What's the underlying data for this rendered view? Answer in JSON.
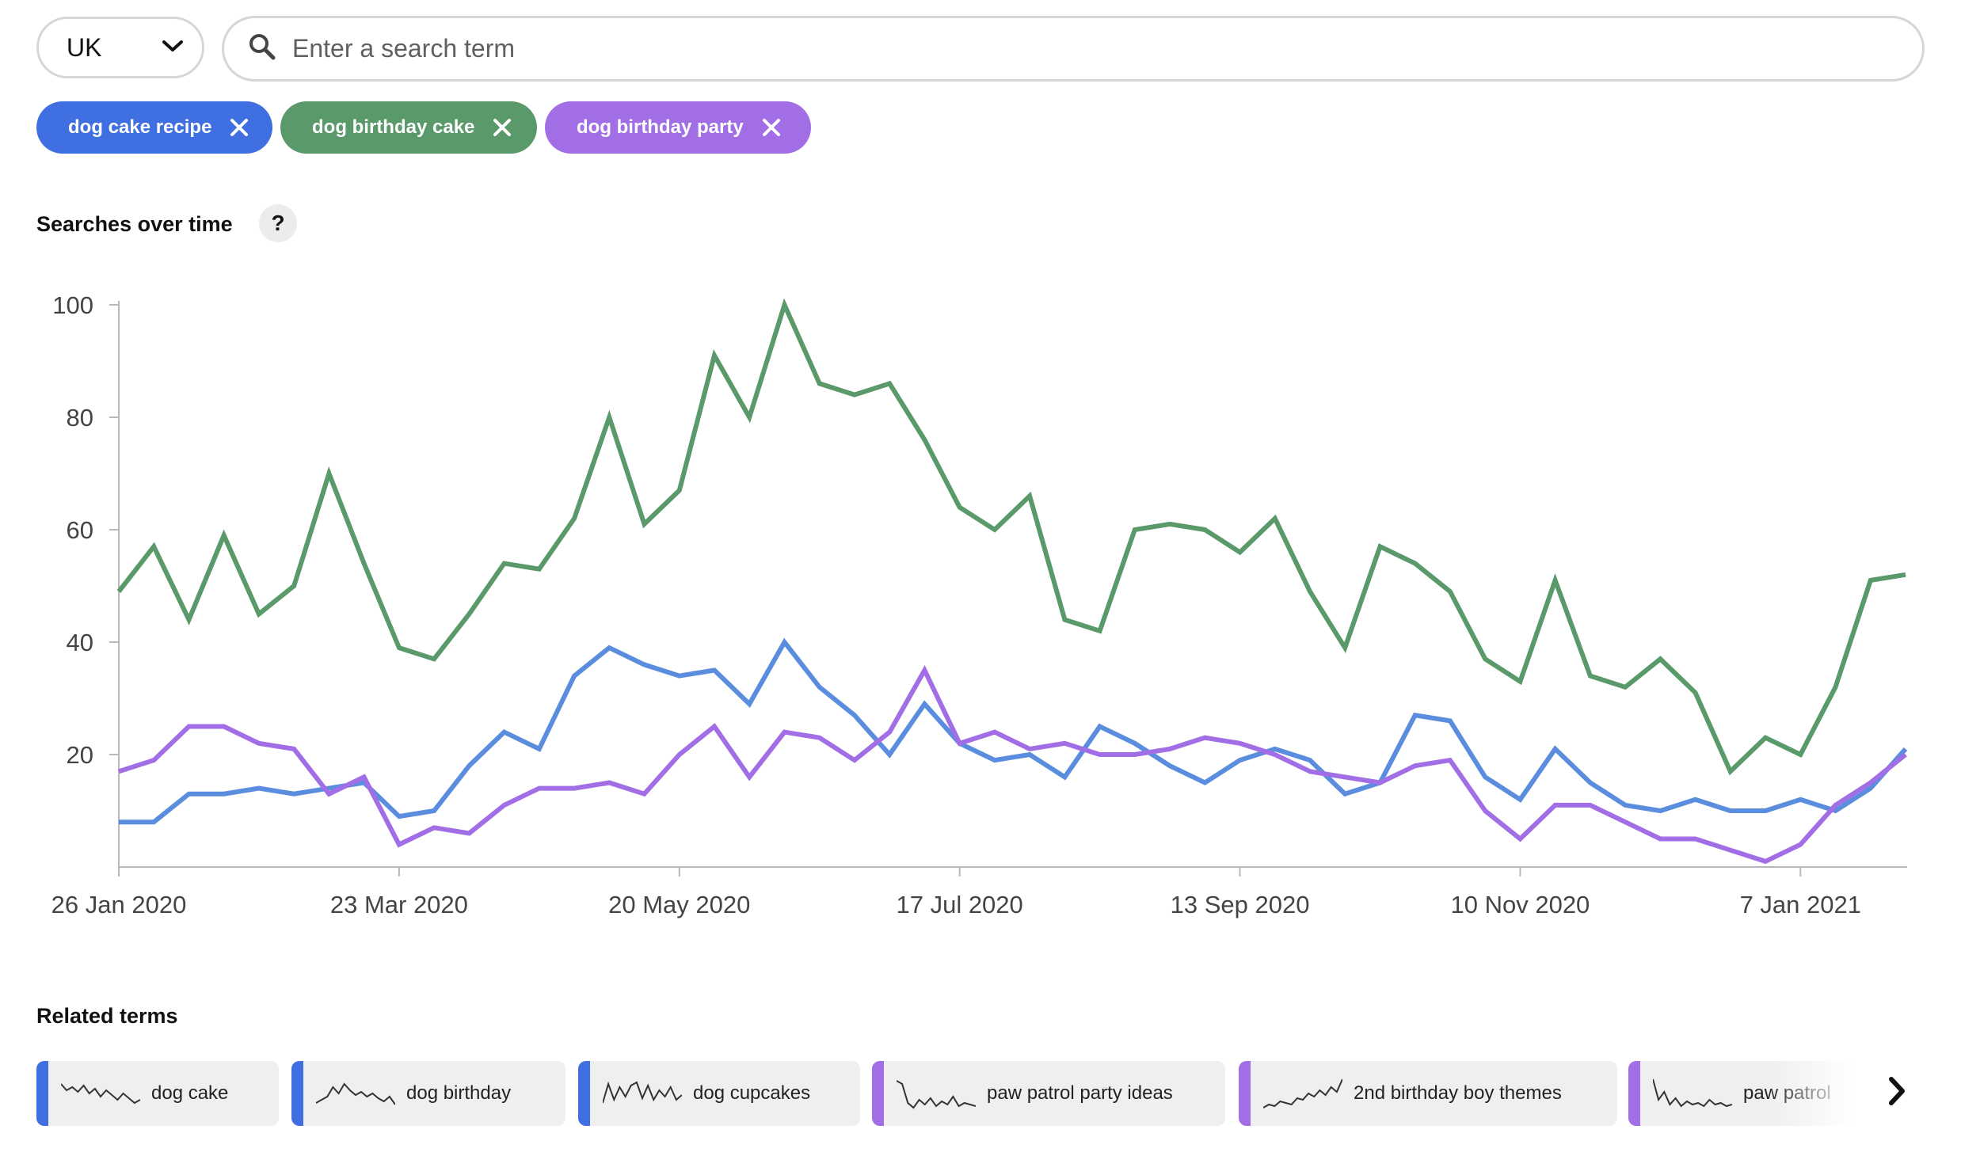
{
  "country": {
    "selected": "UK"
  },
  "search": {
    "placeholder": "Enter a search term"
  },
  "chips": [
    {
      "label": "dog cake recipe",
      "color": "#3f6fe0"
    },
    {
      "label": "dog birthday cake",
      "color": "#5a9a6a"
    },
    {
      "label": "dog birthday party",
      "color": "#a26ee6"
    }
  ],
  "chart_section": {
    "title": "Searches over time",
    "help": "?"
  },
  "chart_data": {
    "type": "line",
    "title": "Searches over time",
    "xlabel": "",
    "ylabel": "",
    "ylim": [
      0,
      100
    ],
    "yticks": [
      20,
      40,
      60,
      80,
      100
    ],
    "x_tick_labels": [
      "26 Jan 2020",
      "23 Mar 2020",
      "20 May 2020",
      "17 Jul 2020",
      "13 Sep 2020",
      "10 Nov 2020",
      "7 Jan 2021"
    ],
    "x_tick_week_index": [
      0,
      8,
      16,
      24,
      32,
      40,
      48
    ],
    "grid": false,
    "series": [
      {
        "name": "dog birthday cake",
        "color": "#5a9a6a",
        "values": [
          49,
          57,
          44,
          59,
          45,
          50,
          70,
          54,
          39,
          37,
          45,
          54,
          53,
          62,
          80,
          61,
          67,
          91,
          80,
          100,
          86,
          84,
          86,
          76,
          64,
          60,
          66,
          44,
          42,
          60,
          61,
          60,
          56,
          62,
          49,
          39,
          57,
          54,
          49,
          37,
          33,
          51,
          34,
          32,
          37,
          31,
          17,
          23,
          20,
          32,
          51,
          52
        ]
      },
      {
        "name": "dog cake recipe",
        "color": "#5b8dde",
        "values": [
          8,
          8,
          13,
          13,
          14,
          13,
          14,
          15,
          9,
          10,
          18,
          24,
          21,
          34,
          39,
          36,
          34,
          35,
          29,
          40,
          32,
          27,
          20,
          29,
          22,
          19,
          20,
          16,
          25,
          22,
          18,
          15,
          19,
          21,
          19,
          13,
          15,
          27,
          26,
          16,
          12,
          21,
          15,
          11,
          10,
          12,
          10,
          10,
          12,
          10,
          14,
          21
        ]
      },
      {
        "name": "dog birthday party",
        "color": "#a26ee6",
        "values": [
          17,
          19,
          25,
          25,
          22,
          21,
          13,
          16,
          4,
          7,
          6,
          11,
          14,
          14,
          15,
          13,
          20,
          25,
          16,
          24,
          23,
          19,
          24,
          35,
          22,
          24,
          21,
          22,
          20,
          20,
          21,
          23,
          22,
          20,
          17,
          16,
          15,
          18,
          19,
          10,
          5,
          11,
          11,
          8,
          5,
          5,
          3,
          1,
          4,
          11,
          15,
          20
        ]
      }
    ]
  },
  "related": {
    "title": "Related terms",
    "items": [
      {
        "label": "dog cake",
        "color": "#3f6fe0"
      },
      {
        "label": "dog birthday",
        "color": "#3f6fe0"
      },
      {
        "label": "dog cupcakes",
        "color": "#3f6fe0"
      },
      {
        "label": "paw patrol party ideas",
        "color": "#a26ee6"
      },
      {
        "label": "2nd birthday boy themes",
        "color": "#a26ee6"
      },
      {
        "label": "paw patrol",
        "color": "#a26ee6"
      }
    ]
  },
  "icons": {
    "dropdown": "chevron-down-icon",
    "search": "search-icon",
    "remove": "close-icon",
    "next": "chevron-right-icon"
  }
}
